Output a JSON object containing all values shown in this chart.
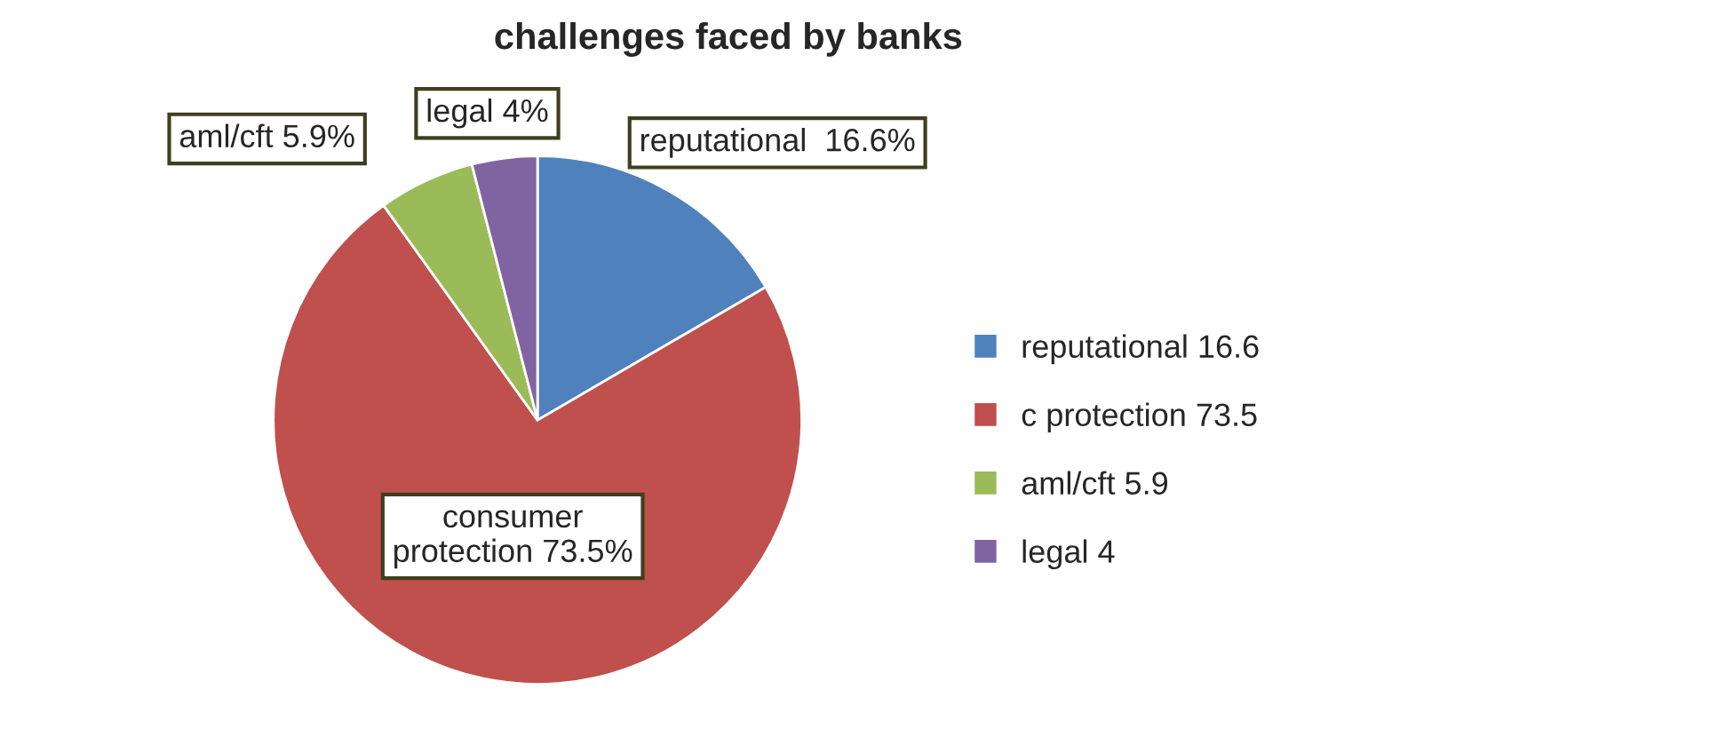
{
  "chart_data": {
    "type": "pie",
    "title": "challenges faced by banks",
    "categories": [
      "reputational 16.6",
      "c protection 73.5",
      "aml/cft 5.9",
      "legal 4"
    ],
    "values": [
      16.6,
      73.5,
      5.9,
      4
    ],
    "colors": [
      "#4f81bd",
      "#c0504d",
      "#9bbb59",
      "#8064a2"
    ],
    "value_labels": [
      "reputational  16.6%",
      "consumer\nprotection 73.5%",
      "aml/cft 5.9%",
      "legal 4%"
    ],
    "legend": "right"
  }
}
